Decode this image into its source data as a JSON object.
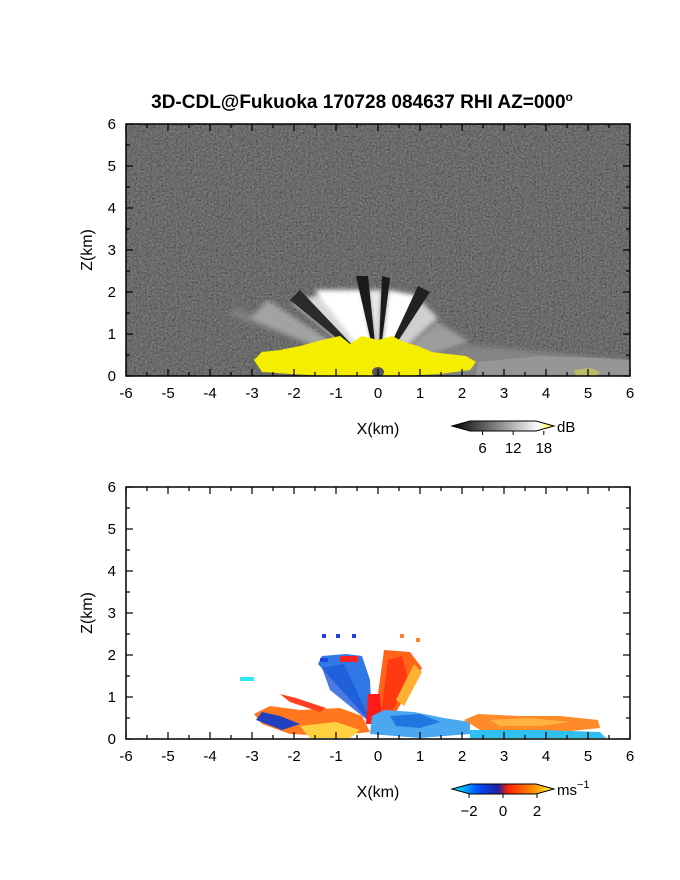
{
  "chart_data": [
    {
      "type": "heatmap",
      "title": "3D-CDL@Fukuoka 170728 084637 RHI AZ=000",
      "title_degree": "o",
      "xlabel": "X(km)",
      "ylabel": "Z(km)",
      "xlim": [
        -6,
        6
      ],
      "ylim": [
        0,
        6
      ],
      "xticks": [
        "-6",
        "-5",
        "-4",
        "-3",
        "-2",
        "-1",
        "0",
        "1",
        "2",
        "3",
        "4",
        "5",
        "6"
      ],
      "yticks": [
        "0",
        "1",
        "2",
        "3",
        "4",
        "5",
        "6"
      ],
      "colorbar": {
        "unit": "dB",
        "ticks": [
          "6",
          "12",
          "18"
        ],
        "tick_values": [
          6,
          12,
          18
        ],
        "range": [
          0,
          20
        ],
        "colormap": "grayscale-to-yellow"
      },
      "field_description": "SNR with bright returns near ground and beam spokes up to ~1.9 km"
    },
    {
      "type": "heatmap",
      "xlabel": "X(km)",
      "ylabel": "Z(km)",
      "xlim": [
        -6,
        6
      ],
      "ylim": [
        0,
        6
      ],
      "xticks": [
        "-6",
        "-5",
        "-4",
        "-3",
        "-2",
        "-1",
        "0",
        "1",
        "2",
        "3",
        "4",
        "5",
        "6"
      ],
      "yticks": [
        "0",
        "1",
        "2",
        "3",
        "4",
        "5",
        "6"
      ],
      "colorbar": {
        "unit": "ms",
        "unit_exponent": "−1",
        "ticks": [
          "−2",
          "0",
          "2"
        ],
        "tick_values": [
          -2,
          0,
          2
        ],
        "range": [
          -3,
          3
        ],
        "colormap": "cyan-blue-red-orange-yellow"
      },
      "field_description": "Doppler velocity, negative on left beams, positive on right beams"
    }
  ]
}
